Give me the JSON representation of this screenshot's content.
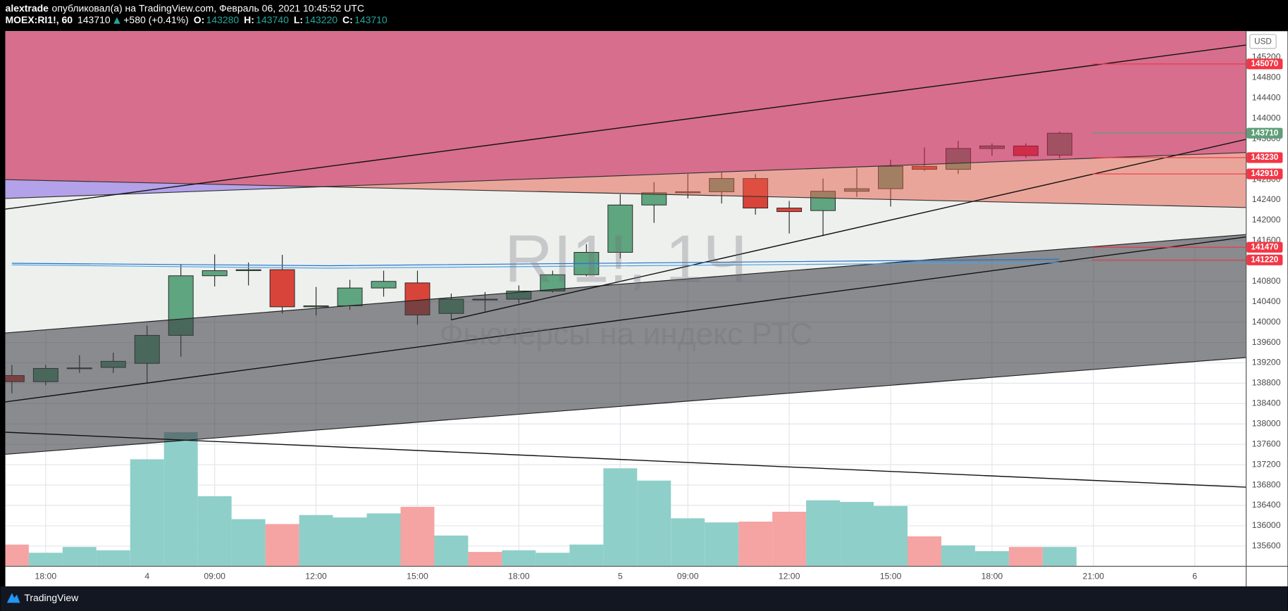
{
  "header": {
    "author": "alextrade",
    "published": "опубликовал(а) на TradingView.com, Февраль 06, 2021 10:45:52 UTC",
    "symbol": "MOEX:RI1!, 60",
    "last": "143710",
    "change": "+580 (+0.41%)",
    "ohlc": [
      {
        "label": "O:",
        "value": "143280"
      },
      {
        "label": "H:",
        "value": "143740"
      },
      {
        "label": "L:",
        "value": "143220"
      },
      {
        "label": "C:",
        "value": "143710"
      }
    ]
  },
  "chart_data": {
    "type": "candlestick",
    "watermark": "RI1!, 1Ч",
    "watermark_subtitle": "Фьючерсы на индекс РТС",
    "currency": "USD",
    "categories": [
      null,
      "18:00",
      null,
      null,
      "4",
      null,
      "09:00",
      null,
      null,
      "12:00",
      null,
      null,
      "15:00",
      null,
      null,
      "18:00",
      null,
      null,
      "5",
      null,
      "09:00",
      null,
      null,
      "12:00",
      null,
      null,
      "15:00",
      null,
      null,
      "18:00",
      null,
      null,
      "21:00",
      null,
      null,
      "6",
      null
    ],
    "open": [
      138950,
      138830,
      139090,
      139110,
      139190,
      139740,
      140910,
      141010,
      141030,
      140300,
      140320,
      140670,
      140770,
      140170,
      140450,
      140450,
      140610,
      140930,
      141370,
      142300,
      142540,
      142560,
      142820,
      142240,
      142190,
      142570,
      142620,
      143060,
      143000,
      143410,
      143460,
      143280,
      null,
      null,
      null,
      null,
      null
    ],
    "high": [
      139160,
      139160,
      139350,
      139400,
      139930,
      141140,
      141330,
      141170,
      141320,
      140690,
      140830,
      141010,
      141010,
      140560,
      140590,
      140720,
      141010,
      141530,
      142510,
      142750,
      142910,
      142940,
      142910,
      142380,
      142820,
      143020,
      143190,
      143430,
      143560,
      143510,
      143510,
      143740,
      null,
      null,
      null,
      null,
      null
    ],
    "low": [
      138600,
      138760,
      139000,
      139000,
      138790,
      139320,
      140700,
      140720,
      140170,
      140130,
      140240,
      140500,
      139950,
      140040,
      140210,
      140370,
      140580,
      140900,
      141250,
      141950,
      142430,
      142330,
      142110,
      141740,
      141690,
      142460,
      142270,
      142970,
      142910,
      143270,
      143230,
      143220,
      null,
      null,
      null,
      null,
      null
    ],
    "close": [
      138830,
      139090,
      139100,
      139230,
      139740,
      140910,
      141010,
      141030,
      140300,
      140320,
      140670,
      140800,
      140140,
      140450,
      140440,
      140610,
      140930,
      141370,
      142300,
      142540,
      142560,
      142820,
      142240,
      142170,
      142570,
      142620,
      143060,
      143000,
      143410,
      143460,
      143270,
      143710,
      null,
      null,
      null,
      null,
      null
    ],
    "volume": [
      26,
      16,
      23,
      19,
      130,
      163,
      85,
      57,
      51,
      62,
      59,
      64,
      72,
      37,
      17,
      19,
      16,
      26,
      119,
      104,
      58,
      53,
      54,
      66,
      80,
      78,
      73,
      36,
      25,
      18,
      23,
      23,
      null,
      null,
      null,
      null,
      null
    ],
    "up_color": "#5fa57f",
    "down_color": "#d9443a",
    "volume_up_color": "#8ecfc9",
    "volume_down_color": "#f5a3a3",
    "ylim": [
      135212,
      145714
    ],
    "yticks": [
      135600,
      136000,
      136400,
      136800,
      137200,
      137600,
      138000,
      138400,
      138800,
      139200,
      139600,
      140000,
      140400,
      140800,
      141200,
      141600,
      142000,
      142400,
      142800,
      143200,
      143600,
      144000,
      144400,
      144800,
      145200
    ],
    "grid": true,
    "price_lines": [
      {
        "value": 145070,
        "color": "#f23645"
      },
      {
        "value": 143710,
        "color": "#5e9e78"
      },
      {
        "value": 143230,
        "color": "#f23645"
      },
      {
        "value": 142910,
        "color": "#f23645"
      },
      {
        "value": 141470,
        "color": "#f23645"
      },
      {
        "value": 141220,
        "color": "#f23645"
      }
    ]
  },
  "footer": {
    "brand": "TradingView"
  }
}
